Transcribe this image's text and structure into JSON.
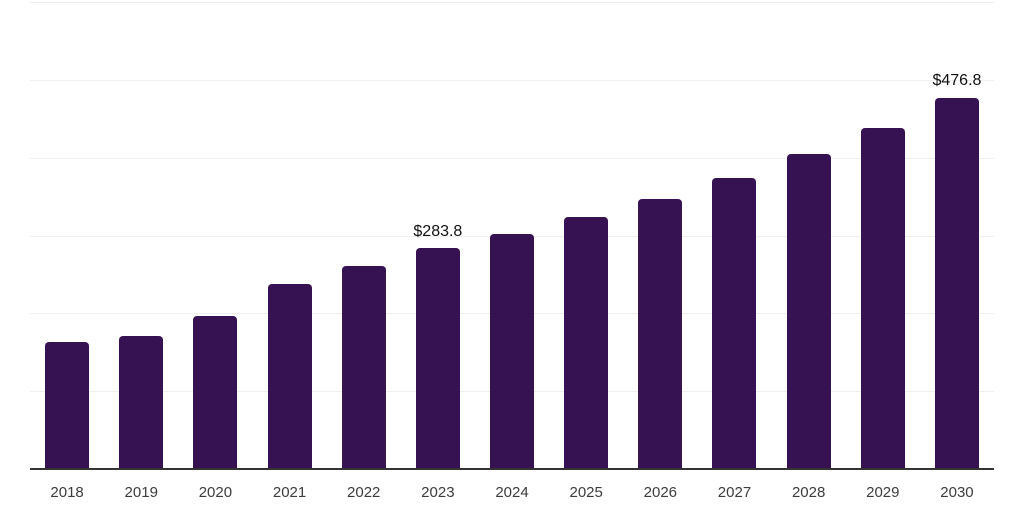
{
  "chart_data": {
    "type": "bar",
    "title": "",
    "xlabel": "",
    "ylabel": "",
    "categories": [
      "2018",
      "2019",
      "2020",
      "2021",
      "2022",
      "2023",
      "2024",
      "2025",
      "2026",
      "2027",
      "2028",
      "2029",
      "2030"
    ],
    "values": [
      163.0,
      170.9,
      196.6,
      237.7,
      260.8,
      283.8,
      301.9,
      323.8,
      346.9,
      373.9,
      404.7,
      438.1,
      476.8
    ],
    "data_labels": {
      "2023": "$283.8",
      "2030": "$476.8"
    },
    "ylim": [
      0,
      600
    ],
    "gridline_interval": 100,
    "grid": true,
    "legend": false,
    "colors": {
      "bar": "#371253",
      "axis_line": "#333333",
      "gridline": "#efefef",
      "tick_label": "#3c3c3c",
      "data_label": "#111111",
      "background": "#ffffff"
    }
  }
}
